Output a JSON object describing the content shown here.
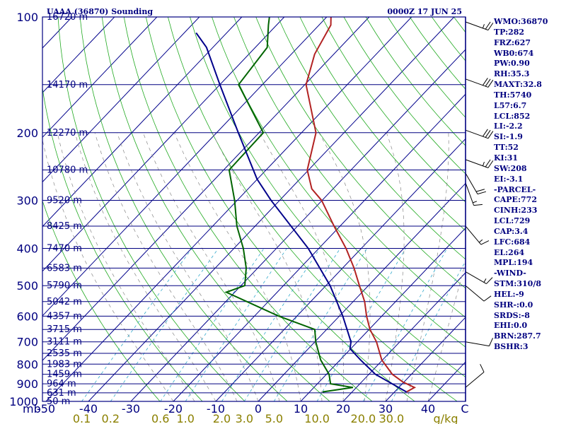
{
  "header": {
    "title": "UAAA (36870) Sounding",
    "time": "0000Z 17 JUN 25"
  },
  "indices": [
    "WMO:36870",
    "TP:282",
    "FRZ:627",
    "WB0:674",
    "PW:0.90",
    "RH:35.3",
    "MAXT:32.8",
    "TH:5740",
    "L57:6.7",
    "LCL:852",
    "LI:-2.2",
    "SI:-1.9",
    "TT:52",
    "KI:31",
    "SW:208",
    "EI:-3.1",
    "-PARCEL-",
    "CAPE:772",
    "CINH:233",
    "LCL:729",
    "CAP:3.4",
    "LFC:684",
    "EL:264",
    "MPL:194",
    "-WIND-",
    "STM:310/8",
    "HEL:-9",
    "SHR-:0.0",
    "SRDS:-8",
    "EHI:0.0",
    "BRN:287.7",
    "BSHR:3"
  ],
  "chart_data": {
    "type": "line",
    "title": "UAAA (36870) Sounding",
    "subtitle": "0000Z 17 JUN 25",
    "x_axis": {
      "unit": "C",
      "range": [
        -50,
        50
      ],
      "ticks": [
        "-50",
        "-40",
        "-30",
        "-20",
        "-10",
        "0",
        "10",
        "20",
        "30",
        "40"
      ],
      "end_label": "C"
    },
    "y_axis": {
      "unit": "mb",
      "scale": "log",
      "range": [
        100,
        1000
      ],
      "label": "mb",
      "ticks": [
        100,
        200,
        300,
        400,
        500,
        600,
        700,
        800,
        900,
        1000
      ]
    },
    "mixing_ratio_axis": {
      "unit": "g/kg",
      "ticks": [
        "0.1",
        "0.2",
        "0.6",
        "1.0",
        "2.0",
        "3.0",
        "5.0",
        "10.0",
        "20.0",
        "30.0"
      ]
    },
    "height_labels": [
      {
        "p": 100,
        "label": "16720 m"
      },
      {
        "p": 150,
        "label": "14170 m"
      },
      {
        "p": 200,
        "label": "12270 m"
      },
      {
        "p": 250,
        "label": "10780 m"
      },
      {
        "p": 300,
        "label": "9520 m"
      },
      {
        "p": 350,
        "label": "8425 m"
      },
      {
        "p": 400,
        "label": "7470 m"
      },
      {
        "p": 450,
        "label": "6583 m"
      },
      {
        "p": 500,
        "label": "5790 m"
      },
      {
        "p": 550,
        "label": "5042 m"
      },
      {
        "p": 600,
        "label": "4357 m"
      },
      {
        "p": 650,
        "label": "3715 m"
      },
      {
        "p": 700,
        "label": "3111 m"
      },
      {
        "p": 750,
        "label": "2535 m"
      },
      {
        "p": 800,
        "label": "1983 m"
      },
      {
        "p": 850,
        "label": "1459 m"
      },
      {
        "p": 900,
        "label": "964 m"
      },
      {
        "p": 950,
        "label": "631 m"
      },
      {
        "p": 1000,
        "label": "50 m"
      }
    ],
    "series": [
      {
        "color": "#b22222",
        "points": [
          {
            "p": 945,
            "t": 32.8
          },
          {
            "p": 920,
            "t": 33.7
          },
          {
            "p": 890,
            "t": 29.7
          },
          {
            "p": 850,
            "t": 25.5
          },
          {
            "p": 780,
            "t": 19.8
          },
          {
            "p": 700,
            "t": 14.5
          },
          {
            "p": 650,
            "t": 10.2
          },
          {
            "p": 600,
            "t": 6.4
          },
          {
            "p": 550,
            "t": 2.7
          },
          {
            "p": 500,
            "t": -2.1
          },
          {
            "p": 450,
            "t": -7.3
          },
          {
            "p": 400,
            "t": -13.6
          },
          {
            "p": 350,
            "t": -21.4
          },
          {
            "p": 300,
            "t": -30.1
          },
          {
            "p": 280,
            "t": -35.0
          },
          {
            "p": 250,
            "t": -40.3
          },
          {
            "p": 200,
            "t": -46.6
          },
          {
            "p": 150,
            "t": -59.7
          },
          {
            "p": 125,
            "t": -64.5
          },
          {
            "p": 105,
            "t": -67.2
          },
          {
            "p": 100,
            "t": -69.0
          }
        ]
      },
      {
        "color": "#006400",
        "points": [
          {
            "p": 945,
            "t": 13.0
          },
          {
            "p": 920,
            "t": 19.2
          },
          {
            "p": 900,
            "t": 13.1
          },
          {
            "p": 850,
            "t": 10.6
          },
          {
            "p": 780,
            "t": 5.4
          },
          {
            "p": 700,
            "t": 0.2
          },
          {
            "p": 650,
            "t": -2.8
          },
          {
            "p": 600,
            "t": -14.3
          },
          {
            "p": 520,
            "t": -32.0
          },
          {
            "p": 500,
            "t": -29.1
          },
          {
            "p": 450,
            "t": -32.7
          },
          {
            "p": 400,
            "t": -37.8
          },
          {
            "p": 350,
            "t": -44.3
          },
          {
            "p": 300,
            "t": -50.6
          },
          {
            "p": 250,
            "t": -58.7
          },
          {
            "p": 200,
            "t": -59.0
          },
          {
            "p": 150,
            "t": -75.6
          },
          {
            "p": 120,
            "t": -77.2
          },
          {
            "p": 105,
            "t": -81.9
          },
          {
            "p": 100,
            "t": -83.5
          }
        ]
      },
      {
        "color": "#00008b",
        "points": [
          {
            "p": 945,
            "t": 32.8
          },
          {
            "p": 850,
            "t": 21.5
          },
          {
            "p": 780,
            "t": 14.8
          },
          {
            "p": 729,
            "t": 9.8
          },
          {
            "p": 700,
            "t": 8.5
          },
          {
            "p": 600,
            "t": 0.8
          },
          {
            "p": 500,
            "t": -9.0
          },
          {
            "p": 400,
            "t": -22.5
          },
          {
            "p": 300,
            "t": -42.0
          },
          {
            "p": 264,
            "t": -50.1
          },
          {
            "p": 200,
            "t": -64.9
          },
          {
            "p": 150,
            "t": -80.0
          },
          {
            "p": 120,
            "t": -91.5
          },
          {
            "p": 110,
            "t": -97.2
          }
        ]
      }
    ],
    "wind_barbs": [
      {
        "p": 103,
        "dir": 290,
        "spd": 25
      },
      {
        "p": 145,
        "dir": 290,
        "spd": 30
      },
      {
        "p": 197,
        "dir": 290,
        "spd": 30
      },
      {
        "p": 235,
        "dir": 290,
        "spd": 25
      },
      {
        "p": 255,
        "dir": 330,
        "spd": 20
      },
      {
        "p": 270,
        "dir": 340,
        "spd": 15
      },
      {
        "p": 350,
        "dir": 320,
        "spd": 15
      },
      {
        "p": 460,
        "dir": 300,
        "spd": 15
      },
      {
        "p": 500,
        "dir": 310,
        "spd": 10
      },
      {
        "p": 700,
        "dir": 280,
        "spd": 10
      },
      {
        "p": 920,
        "dir": 230,
        "spd": 10
      }
    ]
  }
}
